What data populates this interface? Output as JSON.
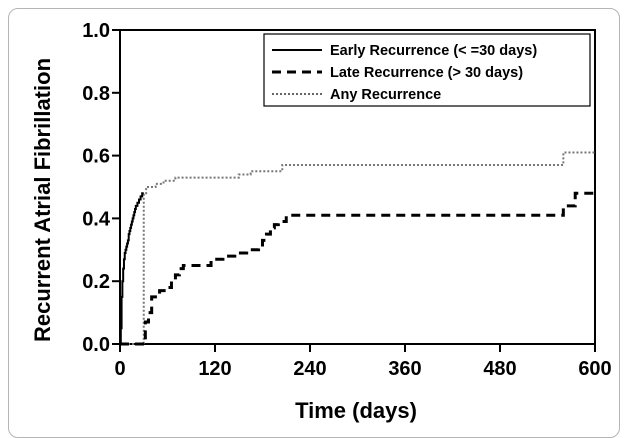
{
  "chart_data": {
    "type": "line",
    "title": "",
    "xlabel": "Time (days)",
    "ylabel": "Recurrent Atrial Fibrillation",
    "xlim": [
      0,
      600
    ],
    "ylim": [
      0,
      1.0
    ],
    "x_ticks": [
      0,
      120,
      240,
      360,
      480,
      600
    ],
    "y_ticks": [
      0.0,
      0.2,
      0.4,
      0.6,
      0.8,
      1.0
    ],
    "x_tick_labels": [
      "0",
      "120",
      "240",
      "360",
      "480",
      "600"
    ],
    "y_tick_labels": [
      "0.0",
      "0.2",
      "0.4",
      "0.6",
      "0.8",
      "1.0"
    ],
    "grid": false,
    "legend_position": "top-right",
    "series": [
      {
        "name": "Early Recurrence (< =30 days)",
        "style": "solid",
        "x": [
          0,
          1,
          2,
          3,
          4,
          5,
          6,
          7,
          8,
          9,
          10,
          11,
          12,
          13,
          14,
          15,
          16,
          17,
          18,
          19,
          20,
          22,
          24,
          26,
          28,
          30
        ],
        "y": [
          0,
          0.05,
          0.15,
          0.2,
          0.24,
          0.27,
          0.29,
          0.3,
          0.31,
          0.32,
          0.33,
          0.35,
          0.36,
          0.37,
          0.38,
          0.39,
          0.4,
          0.41,
          0.42,
          0.43,
          0.44,
          0.45,
          0.46,
          0.47,
          0.48,
          0.48
        ]
      },
      {
        "name": "Late Recurrence (> 30 days)",
        "style": "dashed",
        "x": [
          0,
          30,
          32,
          36,
          40,
          50,
          60,
          65,
          70,
          75,
          80,
          100,
          115,
          130,
          145,
          160,
          175,
          180,
          185,
          190,
          195,
          200,
          210,
          555,
          560,
          575,
          600
        ],
        "y": [
          0,
          0.0,
          0.07,
          0.1,
          0.15,
          0.17,
          0.18,
          0.2,
          0.22,
          0.24,
          0.25,
          0.25,
          0.27,
          0.28,
          0.29,
          0.3,
          0.31,
          0.33,
          0.35,
          0.37,
          0.38,
          0.39,
          0.41,
          0.41,
          0.44,
          0.48,
          0.48
        ]
      },
      {
        "name": "Any Recurrence",
        "style": "dotted",
        "x": [
          0,
          30,
          33,
          45,
          55,
          70,
          90,
          150,
          165,
          205,
          555,
          560,
          600
        ],
        "y": [
          0,
          0.48,
          0.5,
          0.51,
          0.52,
          0.53,
          0.53,
          0.54,
          0.55,
          0.57,
          0.57,
          0.61,
          0.61
        ]
      }
    ]
  }
}
